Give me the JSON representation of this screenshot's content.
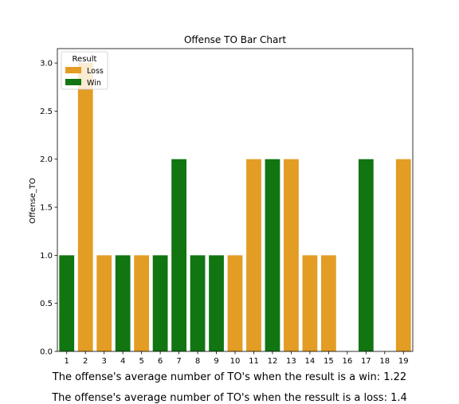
{
  "chart_data": {
    "type": "bar",
    "title": "Offense TO Bar Chart",
    "xlabel": "",
    "ylabel": "Offense_TO",
    "ylim": [
      0,
      3.15
    ],
    "yticks": [
      "0.0",
      "0.5",
      "1.0",
      "1.5",
      "2.0",
      "2.5",
      "3.0"
    ],
    "categories": [
      "1",
      "2",
      "3",
      "4",
      "5",
      "6",
      "7",
      "8",
      "9",
      "10",
      "11",
      "12",
      "13",
      "14",
      "15",
      "16",
      "17",
      "18",
      "19"
    ],
    "values": [
      1,
      3,
      1,
      1,
      1,
      1,
      2,
      1,
      1,
      1,
      2,
      2,
      2,
      1,
      1,
      0,
      2,
      0,
      2
    ],
    "results": [
      "Win",
      "Loss",
      "Loss",
      "Win",
      "Loss",
      "Win",
      "Win",
      "Win",
      "Win",
      "Loss",
      "Loss",
      "Win",
      "Loss",
      "Loss",
      "Loss",
      "",
      "Win",
      "",
      "Loss"
    ],
    "legend": {
      "title": "Result",
      "placement": "top-left",
      "entries": [
        {
          "name": "Loss",
          "color": "#e39c24"
        },
        {
          "name": "Win",
          "color": "#117511"
        }
      ]
    },
    "grid": false
  },
  "captions": {
    "win": "The offense's average number of TO's when the result is a win: 1.22",
    "loss": "The offense's average number of TO's when the ressult is a loss: 1.4"
  }
}
